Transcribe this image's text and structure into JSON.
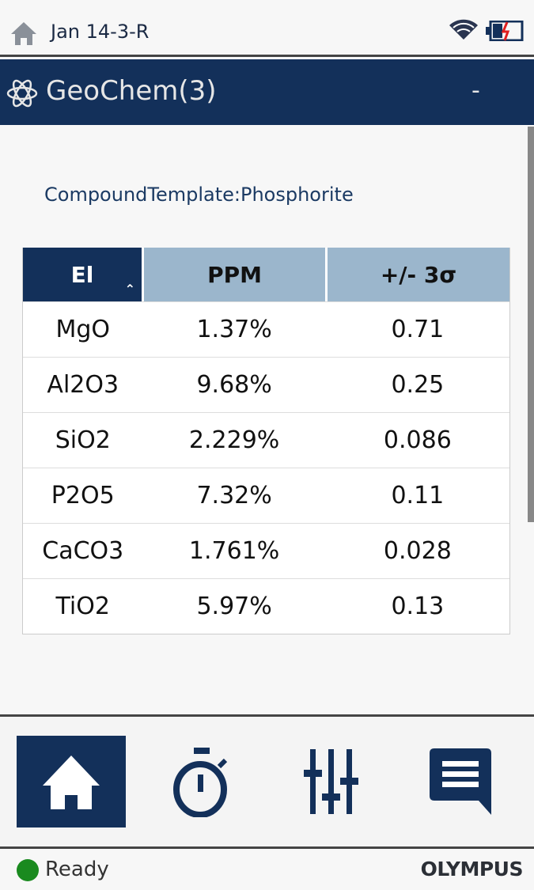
{
  "status": {
    "filename": "Jan 14-3-R",
    "icons": [
      "home-icon",
      "wifi-icon",
      "battery-charging-icon"
    ]
  },
  "titlebar": {
    "title": "GeoChem(3)",
    "minimize_label": "-",
    "icon": "atom-icon"
  },
  "template": "CompoundTemplate:Phosphorite",
  "table": {
    "headers": [
      "El",
      "PPM",
      "+/- 3σ"
    ],
    "sort_indicator": "^",
    "rows": [
      {
        "el": "MgO",
        "ppm": "1.37%",
        "err": "0.71"
      },
      {
        "el": "Al2O3",
        "ppm": "9.68%",
        "err": "0.25"
      },
      {
        "el": "SiO2",
        "ppm": "2.229%",
        "err": "0.086"
      },
      {
        "el": "P2O5",
        "ppm": "7.32%",
        "err": "0.11"
      },
      {
        "el": "CaCO3",
        "ppm": "1.761%",
        "err": "0.028"
      },
      {
        "el": "TiO2",
        "ppm": "5.97%",
        "err": "0.13"
      }
    ]
  },
  "nav": {
    "items": [
      "home-icon",
      "timer-icon",
      "sliders-icon",
      "message-icon"
    ],
    "active": "home"
  },
  "footer": {
    "status": "Ready",
    "status_color": "#1a8a1f",
    "brand": "OLYMPUS"
  },
  "colors": {
    "primary": "#13305a",
    "header_light": "#9bb6cc"
  }
}
